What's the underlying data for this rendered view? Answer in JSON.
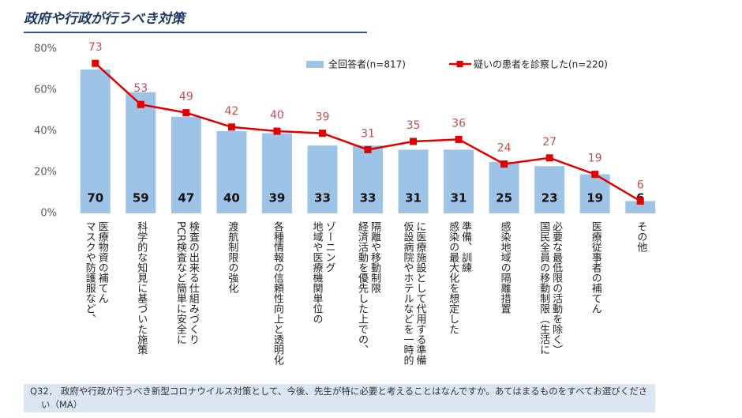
{
  "chart_data": {
    "type": "bar_line",
    "title": "政府や行政が行うべき対策",
    "categories": [
      "医療物資の補てん\nマスクや防護服など、",
      "科学的な知見に基づいた施策",
      "検査の出来る仕組みづくり\nPCR検査など簡単に安全に",
      "渡航制限の強化",
      "各種情報の信頼性向上と透明化",
      "ゾーニング\n地域や医療機関単位の",
      "隔離や移動制限\n経済活動を優先した上での、",
      "に医療施設として代用する準備\n仮設病院やホテルなどを一時的",
      "準備、訓練\n感染の最大化を想定した",
      "感染地域の隔離措置",
      "必要な最低限の活動を除く）\n国民全員の移動制限（生活に",
      "医療従事者の補てん",
      "その他"
    ],
    "series": [
      {
        "name": "全回答者(n=817)",
        "type": "bar",
        "color": "#9dc3e6",
        "values": [
          70,
          59,
          47,
          40,
          39,
          33,
          33,
          31,
          31,
          25,
          23,
          19,
          6
        ]
      },
      {
        "name": "疑いの患者を診察した(n=220)",
        "type": "line",
        "color": "#e00000",
        "values": [
          73,
          53,
          49,
          42,
          40,
          39,
          31,
          35,
          36,
          24,
          27,
          19,
          6
        ]
      }
    ],
    "ylim": [
      0,
      80
    ],
    "yticks": [
      {
        "value": 0,
        "label": "0%"
      },
      {
        "value": 20,
        "label": "20%"
      },
      {
        "value": 40,
        "label": "40%"
      },
      {
        "value": 60,
        "label": "60%"
      },
      {
        "value": 80,
        "label": "80%"
      }
    ],
    "footnote": "Q32． 政府や行政が行うべき新型コロナウイルス対策として、今後、先生が特に必要と考えることはなんですか。あてはまるものをすべてお選びください（MA）"
  }
}
